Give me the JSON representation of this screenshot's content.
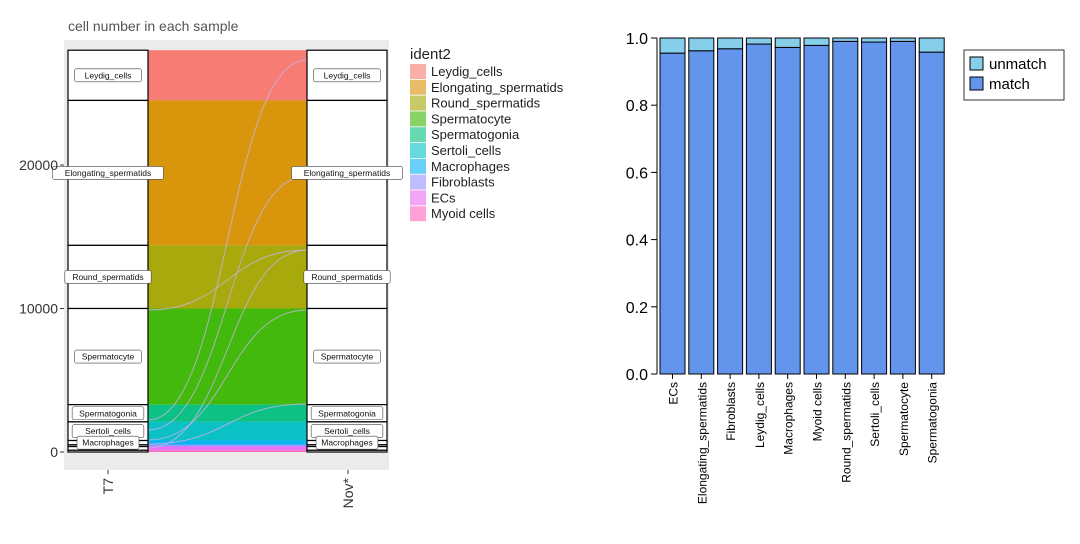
{
  "chart_data": [
    {
      "type": "alluvial",
      "title": "cell number in each sample",
      "xlabel": "",
      "ylabel": "",
      "x_categories": [
        "T7",
        "Nov*"
      ],
      "y_ticks": [
        0,
        10000,
        20000
      ],
      "y_tick_labels": [
        "0",
        "10000",
        "20000"
      ],
      "ylim": [
        0,
        28500
      ],
      "legend_title": "ident2",
      "legend_position": "right",
      "strata": [
        {
          "name": "Leydig_cells",
          "value": 3500,
          "label": "Leydig_cells",
          "color": "#F8766D"
        },
        {
          "name": "Elongating_spermatids",
          "value": 10100,
          "label": "Elongating_spermatids",
          "color": "#D89000"
        },
        {
          "name": "Round_spermatids",
          "value": 4400,
          "label": "Round_spermatids",
          "color": "#A3A500"
        },
        {
          "name": "Spermatocyte",
          "value": 6700,
          "label": "Spermatocyte",
          "color": "#39B600"
        },
        {
          "name": "Spermatogonia",
          "value": 1200,
          "label": "Spermatogonia",
          "color": "#00BF7D"
        },
        {
          "name": "Sertoli_cells",
          "value": 1300,
          "label": "Sertoli_cells",
          "color": "#00BFC4"
        },
        {
          "name": "Macrophages",
          "value": 300,
          "label": "Macrophages",
          "color": "#00B0F6"
        },
        {
          "name": "Fibroblasts",
          "value": 120,
          "label": "",
          "color": "#9590FF"
        },
        {
          "name": "ECs",
          "value": 260,
          "label": "",
          "color": "#E76BF3"
        },
        {
          "name": "Myoid cells",
          "value": 120,
          "label": "",
          "color": "#FF62BC"
        }
      ]
    },
    {
      "type": "bar",
      "stacked": true,
      "categories": [
        "ECs",
        "Elongating_spermatids",
        "Fibroblasts",
        "Leydig_cells",
        "Macrophages",
        "Myoid cells",
        "Round_spermatids",
        "Sertoli_cells",
        "Spermatocyte",
        "Spermatogonia"
      ],
      "series": [
        {
          "name": "match",
          "color": "#6495ED",
          "values": [
            0.955,
            0.962,
            0.968,
            0.982,
            0.972,
            0.978,
            0.99,
            0.988,
            0.99,
            0.958
          ]
        },
        {
          "name": "unmatch",
          "color": "#87CEEB",
          "values": [
            0.045,
            0.038,
            0.032,
            0.018,
            0.028,
            0.022,
            0.01,
            0.012,
            0.01,
            0.042
          ]
        }
      ],
      "y_ticks": [
        0.0,
        0.2,
        0.4,
        0.6,
        0.8,
        1.0
      ],
      "y_tick_labels": [
        "0.0",
        "0.2",
        "0.4",
        "0.6",
        "0.8",
        "1.0"
      ],
      "ylim": [
        0,
        1.0
      ],
      "legend_order": [
        "unmatch",
        "match"
      ],
      "legend_position": "top-right",
      "xlabel": "",
      "ylabel": "",
      "title": ""
    }
  ]
}
